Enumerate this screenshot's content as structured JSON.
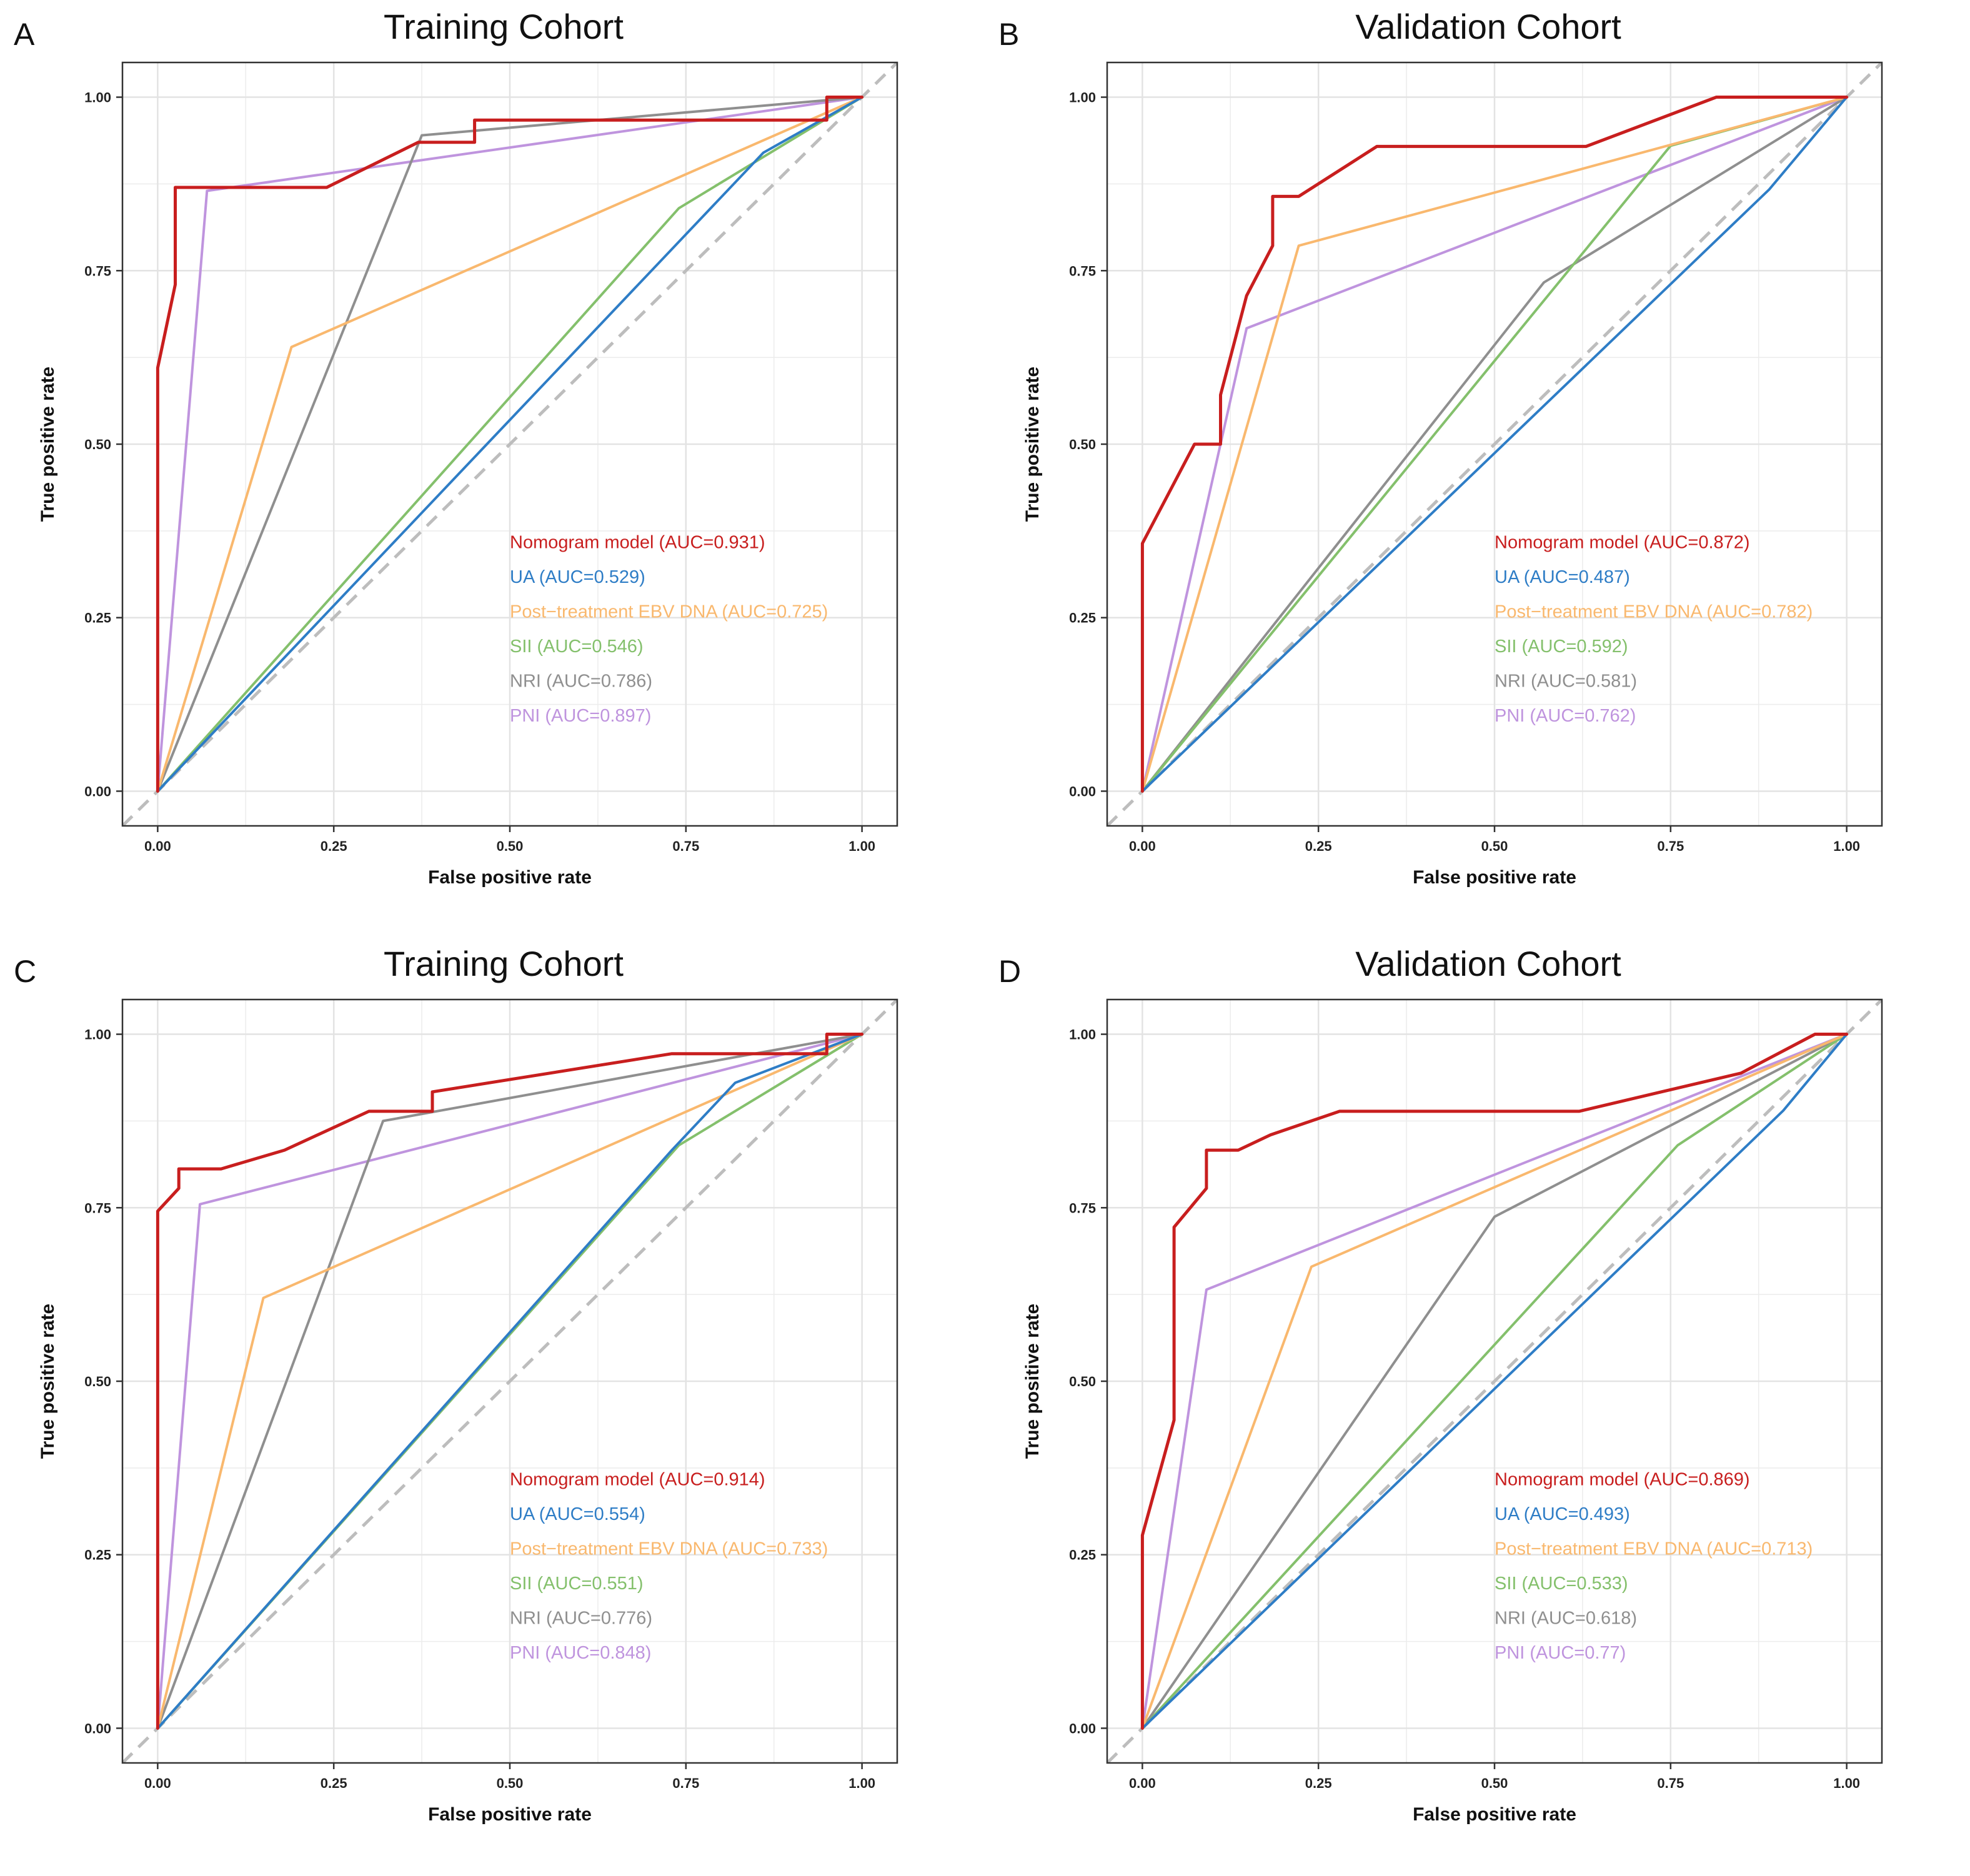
{
  "figure": {
    "description_free": true
  },
  "colors": {
    "Nomogram model": "#c81e1e",
    "UA": "#2e7dc6",
    "Post-treatment EBV DNA": "#f9b86e",
    "SII": "#84c06c",
    "NRI": "#8f8f8f",
    "PNI": "#bf94de",
    "diagonal": "#bdbdbd",
    "grid": "#ececec"
  },
  "chart_data": [
    {
      "panel": "A",
      "type": "line",
      "title": "Training Cohort",
      "xlabel": "False positive rate",
      "ylabel": "True positive rate",
      "xlim": [
        -0.05,
        1.05
      ],
      "ylim": [
        -0.05,
        1.05
      ],
      "xticks": [
        "0.00",
        "0.25",
        "0.50",
        "0.75",
        "1.00"
      ],
      "yticks": [
        "0.00",
        "0.25",
        "0.50",
        "0.75",
        "1.00"
      ],
      "grid": true,
      "legend_position": "bottom-right",
      "series": [
        {
          "name": "Nomogram model",
          "label": "Nomogram model (AUC=0.931)",
          "x": [
            0,
            0,
            0.025,
            0.025,
            0.24,
            0.37,
            0.45,
            0.45,
            0.93,
            0.95,
            0.95,
            1.0
          ],
          "y": [
            0,
            0.61,
            0.73,
            0.87,
            0.87,
            0.935,
            0.935,
            0.967,
            0.967,
            0.967,
            1.0,
            1.0
          ]
        },
        {
          "name": "UA",
          "label": "UA (AUC=0.529)",
          "x": [
            0,
            0.86,
            1.0
          ],
          "y": [
            0,
            0.92,
            1.0
          ]
        },
        {
          "name": "Post-treatment EBV DNA",
          "label": "Post−treatment EBV DNA (AUC=0.725)",
          "x": [
            0,
            0.19,
            1.0
          ],
          "y": [
            0,
            0.64,
            1.0
          ]
        },
        {
          "name": "SII",
          "label": "SII (AUC=0.546)",
          "x": [
            0,
            0.74,
            1.0
          ],
          "y": [
            0,
            0.84,
            1.0
          ]
        },
        {
          "name": "NRI",
          "label": "NRI (AUC=0.786)",
          "x": [
            0,
            0.375,
            1.0
          ],
          "y": [
            0,
            0.945,
            1.0
          ]
        },
        {
          "name": "PNI",
          "label": "PNI (AUC=0.897)",
          "x": [
            0,
            0.07,
            1.0
          ],
          "y": [
            0,
            0.865,
            1.0
          ]
        }
      ]
    },
    {
      "panel": "B",
      "type": "line",
      "title": "Validation Cohort",
      "xlabel": "False positive rate",
      "ylabel": "True positive rate",
      "xlim": [
        -0.05,
        1.05
      ],
      "ylim": [
        -0.05,
        1.05
      ],
      "xticks": [
        "0.00",
        "0.25",
        "0.50",
        "0.75",
        "1.00"
      ],
      "yticks": [
        "0.00",
        "0.25",
        "0.50",
        "0.75",
        "1.00"
      ],
      "grid": true,
      "legend_position": "bottom-right",
      "series": [
        {
          "name": "Nomogram model",
          "label": "Nomogram model (AUC=0.872)",
          "x": [
            0,
            0,
            0.074,
            0.111,
            0.111,
            0.148,
            0.185,
            0.185,
            0.222,
            0.333,
            0.63,
            0.815,
            1.0
          ],
          "y": [
            0,
            0.357,
            0.5,
            0.5,
            0.571,
            0.714,
            0.786,
            0.857,
            0.857,
            0.929,
            0.929,
            1.0,
            1.0
          ]
        },
        {
          "name": "UA",
          "label": "UA (AUC=0.487)",
          "x": [
            0,
            0.89,
            1.0
          ],
          "y": [
            0,
            0.867,
            1.0
          ]
        },
        {
          "name": "Post-treatment EBV DNA",
          "label": "Post−treatment EBV DNA (AUC=0.782)",
          "x": [
            0,
            0.222,
            1.0
          ],
          "y": [
            0,
            0.786,
            1.0
          ]
        },
        {
          "name": "SII",
          "label": "SII (AUC=0.592)",
          "x": [
            0,
            0.75,
            1.0
          ],
          "y": [
            0,
            0.93,
            1.0
          ]
        },
        {
          "name": "NRI",
          "label": "NRI (AUC=0.581)",
          "x": [
            0,
            0.57,
            1.0
          ],
          "y": [
            0,
            0.733,
            1.0
          ]
        },
        {
          "name": "PNI",
          "label": "PNI (AUC=0.762)",
          "x": [
            0,
            0.148,
            1.0
          ],
          "y": [
            0,
            0.667,
            1.0
          ]
        }
      ]
    },
    {
      "panel": "C",
      "type": "line",
      "title": "Training Cohort",
      "xlabel": "False positive rate",
      "ylabel": "True positive rate",
      "xlim": [
        -0.05,
        1.05
      ],
      "ylim": [
        -0.05,
        1.05
      ],
      "xticks": [
        "0.00",
        "0.25",
        "0.50",
        "0.75",
        "1.00"
      ],
      "yticks": [
        "0.00",
        "0.25",
        "0.50",
        "0.75",
        "1.00"
      ],
      "grid": true,
      "legend_position": "bottom-right",
      "series": [
        {
          "name": "Nomogram model",
          "label": "Nomogram model (AUC=0.914)",
          "x": [
            0,
            0,
            0.03,
            0.03,
            0.09,
            0.18,
            0.3,
            0.39,
            0.39,
            0.73,
            0.93,
            0.95,
            0.95,
            1.0
          ],
          "y": [
            0,
            0.745,
            0.778,
            0.806,
            0.806,
            0.833,
            0.889,
            0.889,
            0.917,
            0.972,
            0.972,
            0.972,
            1.0,
            1.0
          ]
        },
        {
          "name": "UA",
          "label": "UA (AUC=0.554)",
          "x": [
            0,
            0.73,
            0.82,
            1.0
          ],
          "y": [
            0,
            0.833,
            0.93,
            1.0
          ]
        },
        {
          "name": "Post-treatment EBV DNA",
          "label": "Post−treatment EBV DNA (AUC=0.733)",
          "x": [
            0,
            0.15,
            1.0
          ],
          "y": [
            0,
            0.62,
            1.0
          ]
        },
        {
          "name": "SII",
          "label": "SII (AUC=0.551)",
          "x": [
            0,
            0.74,
            1.0
          ],
          "y": [
            0,
            0.84,
            1.0
          ]
        },
        {
          "name": "NRI",
          "label": "NRI (AUC=0.776)",
          "x": [
            0,
            0.32,
            1.0
          ],
          "y": [
            0,
            0.875,
            1.0
          ]
        },
        {
          "name": "PNI",
          "label": "PNI (AUC=0.848)",
          "x": [
            0,
            0.06,
            1.0
          ],
          "y": [
            0,
            0.755,
            1.0
          ]
        }
      ]
    },
    {
      "panel": "D",
      "type": "line",
      "title": "Validation Cohort",
      "xlabel": "False positive rate",
      "ylabel": "True positive rate",
      "xlim": [
        -0.05,
        1.05
      ],
      "ylim": [
        -0.05,
        1.05
      ],
      "xticks": [
        "0.00",
        "0.25",
        "0.50",
        "0.75",
        "1.00"
      ],
      "yticks": [
        "0.00",
        "0.25",
        "0.50",
        "0.75",
        "1.00"
      ],
      "grid": true,
      "legend_position": "bottom-right",
      "series": [
        {
          "name": "Nomogram model",
          "label": "Nomogram model (AUC=0.869)",
          "x": [
            0,
            0,
            0.045,
            0.045,
            0.091,
            0.091,
            0.136,
            0.182,
            0.28,
            0.62,
            0.85,
            0.955,
            1.0
          ],
          "y": [
            0,
            0.278,
            0.444,
            0.722,
            0.778,
            0.833,
            0.833,
            0.855,
            0.889,
            0.889,
            0.944,
            1.0,
            1.0
          ]
        },
        {
          "name": "UA",
          "label": "UA (AUC=0.493)",
          "x": [
            0,
            0.91,
            1.0
          ],
          "y": [
            0,
            0.89,
            1.0
          ]
        },
        {
          "name": "Post-treatment EBV DNA",
          "label": "Post−treatment EBV DNA (AUC=0.713)",
          "x": [
            0,
            0.24,
            1.0
          ],
          "y": [
            0,
            0.665,
            1.0
          ]
        },
        {
          "name": "SII",
          "label": "SII (AUC=0.533)",
          "x": [
            0,
            0.76,
            1.0
          ],
          "y": [
            0,
            0.84,
            1.0
          ]
        },
        {
          "name": "NRI",
          "label": "NRI (AUC=0.618)",
          "x": [
            0,
            0.5,
            1.0
          ],
          "y": [
            0,
            0.737,
            1.0
          ]
        },
        {
          "name": "PNI",
          "label": "PNI (AUC=0.77)",
          "x": [
            0,
            0.091,
            1.0
          ],
          "y": [
            0,
            0.632,
            1.0
          ]
        }
      ]
    }
  ]
}
